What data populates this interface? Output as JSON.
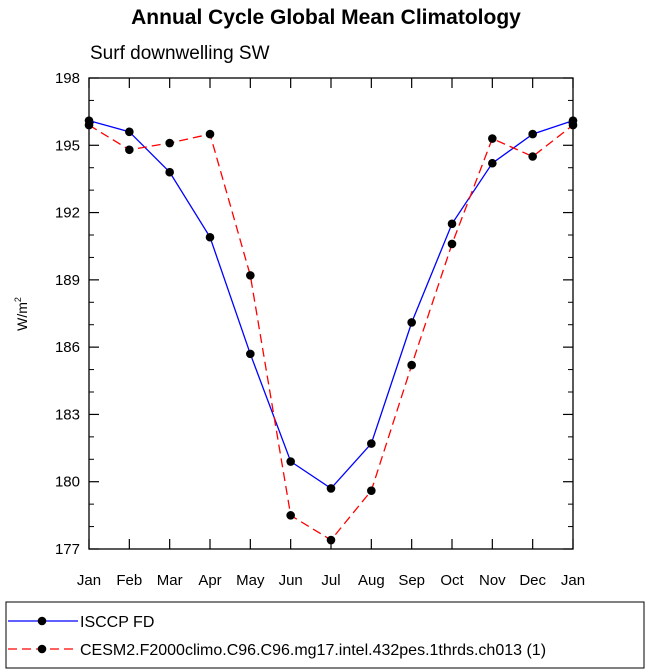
{
  "chart_data": {
    "type": "line",
    "title": "Annual Cycle Global Mean Climatology",
    "subtitle": "Surf downwelling SW",
    "ylabel": "W/m",
    "ylabel_superscript": "2",
    "xlabel": "",
    "categories": [
      "Jan",
      "Feb",
      "Mar",
      "Apr",
      "May",
      "Jun",
      "Jul",
      "Aug",
      "Sep",
      "Oct",
      "Nov",
      "Dec",
      "Jan"
    ],
    "ylim": [
      177,
      198
    ],
    "yticks": [
      177,
      180,
      183,
      186,
      189,
      192,
      195,
      198
    ],
    "grid": false,
    "legend_position": "bottom",
    "series": [
      {
        "name": "ISCCP FD",
        "color": "#0000ff",
        "dash": "solid",
        "values": [
          196.1,
          195.6,
          193.8,
          190.9,
          185.7,
          180.9,
          179.7,
          181.7,
          187.1,
          191.5,
          194.2,
          195.5,
          196.1
        ]
      },
      {
        "name": "CESM2.F2000climo.C96.C96.mg17.intel.432pes.1thrds.ch013 (1)",
        "color": "#ff0000",
        "dash": "dashed",
        "values": [
          195.9,
          194.8,
          195.1,
          195.5,
          189.2,
          178.5,
          177.4,
          179.6,
          185.2,
          190.6,
          195.3,
          194.5,
          195.9
        ]
      }
    ]
  }
}
